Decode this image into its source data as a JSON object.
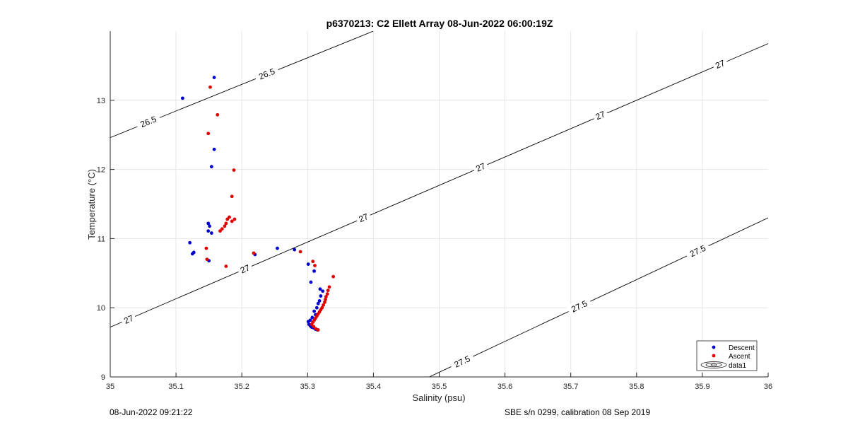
{
  "chart_data": {
    "type": "scatter",
    "title": "p6370213: C2 Ellett Array 08-Jun-2022 06:00:19Z",
    "xlabel": "Salinity (psu)",
    "ylabel": "Temperature (°C)",
    "xlim": [
      35,
      36
    ],
    "ylim": [
      9,
      14
    ],
    "xticks": [
      35,
      35.1,
      35.2,
      35.3,
      35.4,
      35.5,
      35.6,
      35.7,
      35.8,
      35.9,
      36
    ],
    "xtick_labels": [
      "35",
      "35.1",
      "35.2",
      "35.3",
      "35.4",
      "35.5",
      "35.6",
      "35.7",
      "35.8",
      "35.9",
      "36"
    ],
    "yticks": [
      9,
      10,
      11,
      12,
      13
    ],
    "ytick_labels": [
      "9",
      "10",
      "11",
      "12",
      "13"
    ],
    "grid": true,
    "legend_position": "bottom-right",
    "series": [
      {
        "name": "Descent",
        "color": "#0000cc",
        "points": [
          [
            35.158,
            13.33
          ],
          [
            35.11,
            13.03
          ],
          [
            35.158,
            12.29
          ],
          [
            35.154,
            12.04
          ],
          [
            35.149,
            11.22
          ],
          [
            35.151,
            11.18
          ],
          [
            35.149,
            11.11
          ],
          [
            35.154,
            11.08
          ],
          [
            35.121,
            10.94
          ],
          [
            35.127,
            10.8
          ],
          [
            35.125,
            10.78
          ],
          [
            35.15,
            10.68
          ],
          [
            35.22,
            10.77
          ],
          [
            35.254,
            10.86
          ],
          [
            35.28,
            10.84
          ],
          [
            35.301,
            10.63
          ],
          [
            35.31,
            10.53
          ],
          [
            35.305,
            10.37
          ],
          [
            35.319,
            10.27
          ],
          [
            35.323,
            10.24
          ],
          [
            35.32,
            10.17
          ],
          [
            35.318,
            10.1
          ],
          [
            35.316,
            10.06
          ],
          [
            35.314,
            10.0
          ],
          [
            35.31,
            9.95
          ],
          [
            35.312,
            9.9
          ],
          [
            35.307,
            9.86
          ],
          [
            35.304,
            9.82
          ],
          [
            35.301,
            9.8
          ],
          [
            35.302,
            9.76
          ],
          [
            35.304,
            9.74
          ],
          [
            35.306,
            9.72
          ],
          [
            35.309,
            9.71
          ],
          [
            35.312,
            9.69
          ],
          [
            35.315,
            9.68
          ]
        ]
      },
      {
        "name": "Ascent",
        "color": "#e00000",
        "points": [
          [
            35.152,
            13.19
          ],
          [
            35.163,
            12.79
          ],
          [
            35.149,
            12.52
          ],
          [
            35.188,
            11.99
          ],
          [
            35.185,
            11.61
          ],
          [
            35.189,
            11.28
          ],
          [
            35.185,
            11.25
          ],
          [
            35.181,
            11.31
          ],
          [
            35.178,
            11.28
          ],
          [
            35.176,
            11.22
          ],
          [
            35.174,
            11.18
          ],
          [
            35.17,
            11.14
          ],
          [
            35.167,
            11.11
          ],
          [
            35.146,
            10.86
          ],
          [
            35.147,
            10.7
          ],
          [
            35.176,
            10.6
          ],
          [
            35.218,
            10.79
          ],
          [
            35.289,
            10.81
          ],
          [
            35.308,
            10.67
          ],
          [
            35.311,
            10.61
          ],
          [
            35.339,
            10.45
          ],
          [
            35.333,
            10.3
          ],
          [
            35.331,
            10.25
          ],
          [
            35.33,
            10.2
          ],
          [
            35.328,
            10.16
          ],
          [
            35.327,
            10.12
          ],
          [
            35.326,
            10.08
          ],
          [
            35.324,
            10.04
          ],
          [
            35.322,
            10.0
          ],
          [
            35.32,
            9.97
          ],
          [
            35.318,
            9.94
          ],
          [
            35.316,
            9.91
          ],
          [
            35.314,
            9.88
          ],
          [
            35.312,
            9.85
          ],
          [
            35.31,
            9.82
          ],
          [
            35.308,
            9.79
          ],
          [
            35.306,
            9.76
          ],
          [
            35.309,
            9.73
          ],
          [
            35.312,
            9.7
          ],
          [
            35.316,
            9.68
          ]
        ]
      }
    ],
    "contours": [
      {
        "level_label": "26.5",
        "points": [
          [
            35.0,
            12.46
          ],
          [
            35.4,
            14.0
          ]
        ],
        "labels": [
          [
            35.058,
            12.69
          ],
          [
            35.238,
            13.38
          ]
        ]
      },
      {
        "level_label": "27",
        "points": [
          [
            35.0,
            9.72
          ],
          [
            36.0,
            13.82
          ]
        ],
        "labels": [
          [
            35.028,
            9.83
          ],
          [
            35.205,
            10.56
          ],
          [
            35.385,
            11.3
          ],
          [
            35.563,
            12.03
          ],
          [
            35.745,
            12.78
          ],
          [
            35.927,
            13.52
          ]
        ]
      },
      {
        "level_label": "27.5",
        "points": [
          [
            35.485,
            9.0
          ],
          [
            36.0,
            11.3
          ]
        ],
        "labels": [
          [
            35.535,
            9.22
          ],
          [
            35.713,
            10.02
          ],
          [
            35.893,
            10.82
          ]
        ]
      }
    ],
    "legend": {
      "entries": [
        "Descent",
        "Ascent",
        "data1"
      ]
    }
  },
  "footer": {
    "left": "08-Jun-2022 09:21:22",
    "right": "SBE s/n 0299, calibration 08 Sep 2019"
  }
}
